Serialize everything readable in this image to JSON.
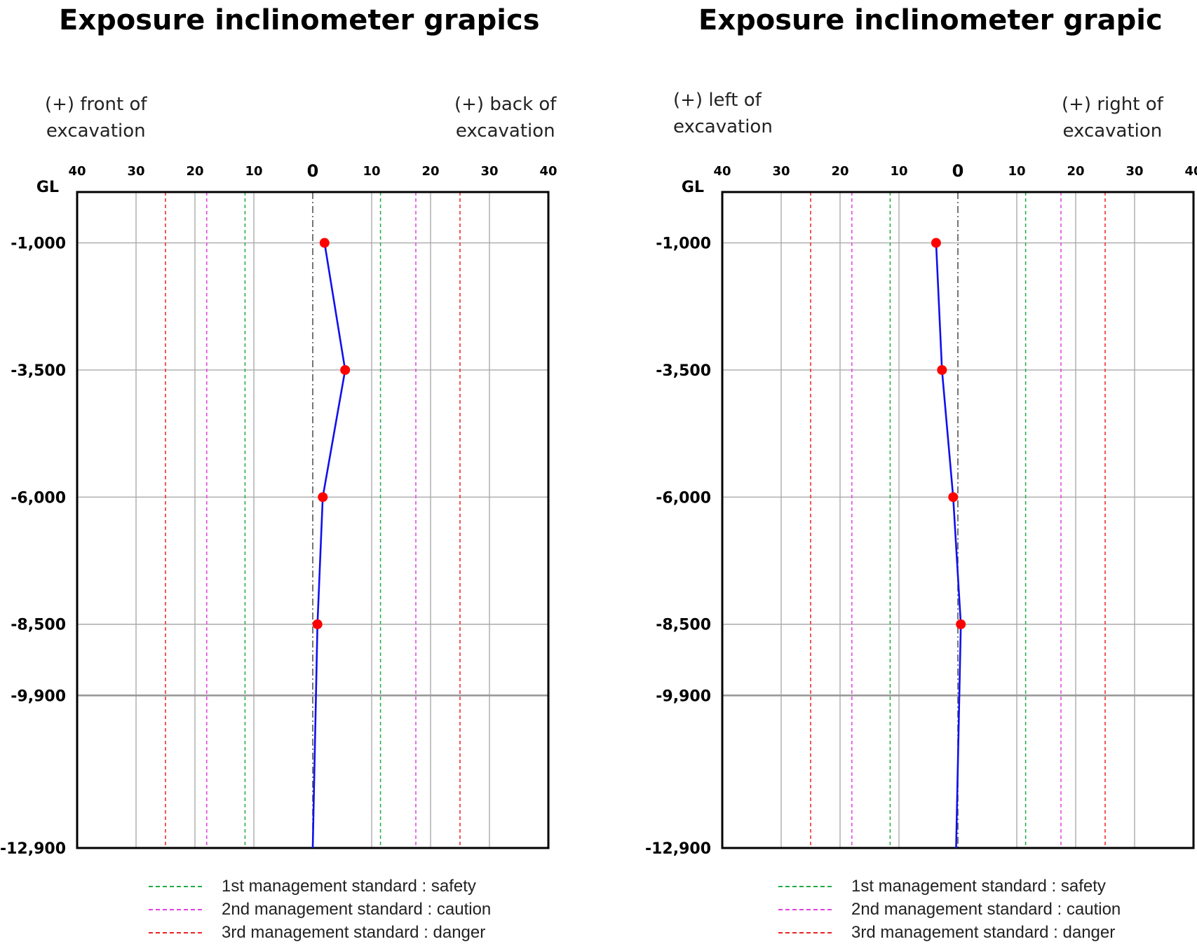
{
  "charts": [
    {
      "title": "Exposure inclinometer grapics",
      "dir_left": "(+) front of\nexcavation",
      "dir_right": "(+) back of\nexcavation"
    },
    {
      "title": "Exposure inclinometer grapic",
      "dir_left": "(+) left of\nexcavation",
      "dir_right": "(+) right of\nexcavation"
    }
  ],
  "legend": [
    {
      "text": "1st management  standard : safety",
      "color": "#22aa44"
    },
    {
      "text": "2nd management  standard  : caution",
      "color": "#e040e0"
    },
    {
      "text": "3rd management  standard  : danger",
      "color": "#ee2222"
    }
  ],
  "colors": {
    "profile_line": "#1010ee",
    "marker": "#ff0000",
    "grid": "#aaaaaa",
    "axis_zero": "#555555"
  },
  "chart_data": [
    {
      "type": "line",
      "title": "Exposure inclinometer grapics",
      "x_tick_labels": [
        "40",
        "30",
        "20",
        "10",
        "0",
        "10",
        "20",
        "30",
        "40"
      ],
      "x_ticks": [
        -40,
        -30,
        -20,
        -10,
        0,
        10,
        20,
        30,
        40
      ],
      "xlim": [
        -40,
        40
      ],
      "y_tick_labels": [
        "GL",
        "-1,000",
        "-3,500",
        "-6,000",
        "-8,500",
        "-9,900",
        "-12,900"
      ],
      "y_ticks": [
        0,
        -1000,
        -3500,
        -6000,
        -8500,
        -9900,
        -12900
      ],
      "ylim": [
        -12900,
        0
      ],
      "thresholds": [
        {
          "level": "1st",
          "values": [
            -11.5,
            11.5
          ]
        },
        {
          "level": "2nd",
          "values": [
            -18,
            17.5
          ]
        },
        {
          "level": "3rd",
          "values": [
            -25,
            25
          ]
        }
      ],
      "profile": {
        "depth": [
          -1000,
          -3500,
          -6000,
          -8500,
          -12900
        ],
        "displacement": [
          2,
          5.5,
          1.7,
          0.8,
          0
        ]
      },
      "markers": {
        "depth": [
          -1000,
          -3500,
          -6000,
          -8500
        ],
        "displacement": [
          2,
          5.5,
          1.7,
          0.8
        ]
      },
      "grid": true,
      "legend_position": "bottom"
    },
    {
      "type": "line",
      "title": "Exposure inclinometer grapic",
      "x_tick_labels": [
        "40",
        "30",
        "20",
        "10",
        "0",
        "10",
        "20",
        "30",
        "40"
      ],
      "x_ticks": [
        -40,
        -30,
        -20,
        -10,
        0,
        10,
        20,
        30,
        40
      ],
      "xlim": [
        -40,
        40
      ],
      "y_tick_labels": [
        "GL",
        "-1,000",
        "-3,500",
        "-6,000",
        "-8,500",
        "-9,900",
        "-12,900"
      ],
      "y_ticks": [
        0,
        -1000,
        -3500,
        -6000,
        -8500,
        -9900,
        -12900
      ],
      "ylim": [
        -12900,
        0
      ],
      "thresholds": [
        {
          "level": "1st",
          "values": [
            -11.5,
            11.5
          ]
        },
        {
          "level": "2nd",
          "values": [
            -18,
            17.5
          ]
        },
        {
          "level": "3rd",
          "values": [
            -25,
            25
          ]
        }
      ],
      "profile": {
        "depth": [
          -1000,
          -3500,
          -6000,
          -8500,
          -12900
        ],
        "displacement": [
          -3.7,
          -2.7,
          -0.8,
          0.5,
          -0.3
        ]
      },
      "markers": {
        "depth": [
          -1000,
          -3500,
          -6000,
          -8500
        ],
        "displacement": [
          -3.7,
          -2.7,
          -0.8,
          0.5
        ]
      },
      "grid": true,
      "legend_position": "bottom"
    }
  ]
}
